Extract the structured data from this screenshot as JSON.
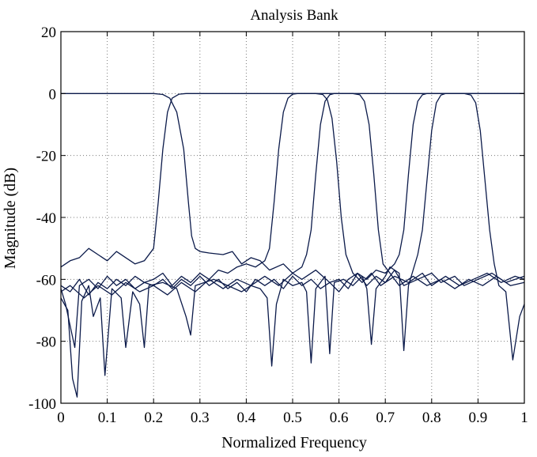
{
  "chart_data": {
    "type": "line",
    "title": "Analysis Bank",
    "xlabel": "Normalized Frequency",
    "ylabel": "Magnitude (dB)",
    "xlim": [
      0,
      1
    ],
    "ylim": [
      -100,
      20
    ],
    "xticks": [
      0,
      0.1,
      0.2,
      0.3,
      0.4,
      0.5,
      0.6,
      0.7,
      0.8,
      0.9,
      1
    ],
    "xtick_labels": [
      "0",
      "0.1",
      "0.2",
      "0.3",
      "0.4",
      "0.5",
      "0.6",
      "0.7",
      "0.8",
      "0.9",
      "1"
    ],
    "yticks": [
      -100,
      -80,
      -60,
      -40,
      -20,
      0,
      20
    ],
    "ytick_labels": [
      "-100",
      "-80",
      "-60",
      "-40",
      "-20",
      "0",
      "20"
    ],
    "grid": true,
    "line_color": "#0b1a4a",
    "series": [
      {
        "points": [
          [
            0,
            0
          ],
          [
            0.2,
            0
          ],
          [
            0.22,
            -0.3
          ],
          [
            0.235,
            -1.5
          ],
          [
            0.25,
            -6
          ],
          [
            0.265,
            -18
          ],
          [
            0.275,
            -35
          ],
          [
            0.282,
            -46
          ],
          [
            0.29,
            -50
          ],
          [
            0.3,
            -51
          ],
          [
            0.32,
            -51.5
          ],
          [
            0.35,
            -52
          ],
          [
            0.37,
            -51
          ],
          [
            0.39,
            -55
          ],
          [
            0.41,
            -53
          ],
          [
            0.43,
            -54
          ],
          [
            0.45,
            -57
          ],
          [
            0.48,
            -55
          ],
          [
            0.5,
            -58
          ],
          [
            0.52,
            -60
          ],
          [
            0.55,
            -57
          ],
          [
            0.58,
            -61
          ],
          [
            0.6,
            -60
          ],
          [
            0.62,
            -63
          ],
          [
            0.64,
            -58
          ],
          [
            0.66,
            -62
          ],
          [
            0.68,
            -59
          ],
          [
            0.7,
            -61
          ],
          [
            0.72,
            -57
          ],
          [
            0.74,
            -62
          ],
          [
            0.77,
            -60
          ],
          [
            0.8,
            -58
          ],
          [
            0.82,
            -61
          ],
          [
            0.85,
            -59
          ],
          [
            0.87,
            -62
          ],
          [
            0.9,
            -60
          ],
          [
            0.93,
            -58
          ],
          [
            0.96,
            -61
          ],
          [
            1,
            -59
          ]
        ]
      },
      {
        "points": [
          [
            0,
            -56
          ],
          [
            0.02,
            -54
          ],
          [
            0.04,
            -53
          ],
          [
            0.06,
            -50
          ],
          [
            0.08,
            -52
          ],
          [
            0.1,
            -54
          ],
          [
            0.12,
            -51
          ],
          [
            0.14,
            -53
          ],
          [
            0.16,
            -55
          ],
          [
            0.18,
            -54
          ],
          [
            0.2,
            -50
          ],
          [
            0.21,
            -35
          ],
          [
            0.22,
            -18
          ],
          [
            0.23,
            -6
          ],
          [
            0.24,
            -1.5
          ],
          [
            0.255,
            -0.2
          ],
          [
            0.27,
            0
          ],
          [
            1,
            0
          ]
        ]
      },
      {
        "points": [
          [
            0,
            -62
          ],
          [
            0.02,
            -64
          ],
          [
            0.04,
            -60
          ],
          [
            0.06,
            -65
          ],
          [
            0.08,
            -61
          ],
          [
            0.1,
            -63
          ],
          [
            0.12,
            -60
          ],
          [
            0.14,
            -62
          ],
          [
            0.16,
            -59
          ],
          [
            0.18,
            -61
          ],
          [
            0.2,
            -60
          ],
          [
            0.22,
            -58
          ],
          [
            0.24,
            -62
          ],
          [
            0.26,
            -59
          ],
          [
            0.28,
            -61
          ],
          [
            0.3,
            -58
          ],
          [
            0.32,
            -60
          ],
          [
            0.34,
            -57
          ],
          [
            0.36,
            -58
          ],
          [
            0.38,
            -56
          ],
          [
            0.4,
            -55
          ],
          [
            0.42,
            -56
          ],
          [
            0.44,
            -54
          ],
          [
            0.45,
            -50
          ],
          [
            0.46,
            -35
          ],
          [
            0.47,
            -18
          ],
          [
            0.48,
            -6
          ],
          [
            0.49,
            -1.5
          ],
          [
            0.5,
            -0.2
          ],
          [
            0.51,
            0
          ],
          [
            0.55,
            0
          ],
          [
            0.565,
            -0.3
          ],
          [
            0.575,
            -2
          ],
          [
            0.585,
            -8
          ],
          [
            0.595,
            -22
          ],
          [
            0.605,
            -40
          ],
          [
            0.615,
            -52
          ],
          [
            0.63,
            -58
          ],
          [
            0.65,
            -61
          ],
          [
            0.67,
            -58
          ],
          [
            0.69,
            -62
          ],
          [
            0.72,
            -59
          ],
          [
            0.75,
            -61
          ],
          [
            0.78,
            -58
          ],
          [
            0.8,
            -62
          ],
          [
            0.83,
            -59
          ],
          [
            0.86,
            -62
          ],
          [
            0.89,
            -60
          ],
          [
            0.92,
            -58
          ],
          [
            0.95,
            -61
          ],
          [
            0.98,
            -59
          ],
          [
            1,
            -60
          ]
        ]
      },
      {
        "points": [
          [
            0,
            -64
          ],
          [
            0.02,
            -62
          ],
          [
            0.05,
            -66
          ],
          [
            0.08,
            -62
          ],
          [
            0.11,
            -65
          ],
          [
            0.14,
            -61
          ],
          [
            0.17,
            -64
          ],
          [
            0.2,
            -62
          ],
          [
            0.23,
            -65
          ],
          [
            0.26,
            -61
          ],
          [
            0.29,
            -64
          ],
          [
            0.32,
            -60
          ],
          [
            0.35,
            -63
          ],
          [
            0.38,
            -60
          ],
          [
            0.41,
            -62
          ],
          [
            0.44,
            -59
          ],
          [
            0.47,
            -62
          ],
          [
            0.5,
            -58
          ],
          [
            0.52,
            -56
          ],
          [
            0.53,
            -52
          ],
          [
            0.54,
            -44
          ],
          [
            0.55,
            -26
          ],
          [
            0.56,
            -10
          ],
          [
            0.57,
            -2.5
          ],
          [
            0.58,
            -0.4
          ],
          [
            0.59,
            0
          ],
          [
            0.63,
            0
          ],
          [
            0.645,
            -0.4
          ],
          [
            0.655,
            -2.5
          ],
          [
            0.665,
            -10
          ],
          [
            0.675,
            -26
          ],
          [
            0.685,
            -44
          ],
          [
            0.695,
            -55
          ],
          [
            0.71,
            -58
          ],
          [
            0.73,
            -62
          ],
          [
            0.76,
            -59
          ],
          [
            0.79,
            -62
          ],
          [
            0.82,
            -60
          ],
          [
            0.85,
            -63
          ],
          [
            0.88,
            -60
          ],
          [
            0.91,
            -62
          ],
          [
            0.94,
            -59
          ],
          [
            0.97,
            -62
          ],
          [
            1,
            -61
          ]
        ]
      },
      {
        "points": [
          [
            0,
            -66
          ],
          [
            0.015,
            -70
          ],
          [
            0.025,
            -92
          ],
          [
            0.035,
            -98
          ],
          [
            0.045,
            -67
          ],
          [
            0.06,
            -62
          ],
          [
            0.07,
            -72
          ],
          [
            0.085,
            -66
          ],
          [
            0.095,
            -91
          ],
          [
            0.11,
            -63
          ],
          [
            0.13,
            -66
          ],
          [
            0.14,
            -82
          ],
          [
            0.155,
            -64
          ],
          [
            0.17,
            -68
          ],
          [
            0.18,
            -82
          ],
          [
            0.19,
            -62
          ],
          [
            0.22,
            -61
          ],
          [
            0.25,
            -63
          ],
          [
            0.27,
            -72
          ],
          [
            0.28,
            -78
          ],
          [
            0.29,
            -62
          ],
          [
            0.33,
            -60
          ],
          [
            0.36,
            -62
          ],
          [
            0.39,
            -64
          ],
          [
            0.41,
            -62
          ],
          [
            0.43,
            -63
          ],
          [
            0.445,
            -66
          ],
          [
            0.455,
            -88
          ],
          [
            0.465,
            -68
          ],
          [
            0.48,
            -60
          ],
          [
            0.5,
            -62
          ],
          [
            0.52,
            -61
          ],
          [
            0.53,
            -64
          ],
          [
            0.54,
            -87
          ],
          [
            0.55,
            -63
          ],
          [
            0.57,
            -59
          ],
          [
            0.58,
            -84
          ],
          [
            0.59,
            -61
          ],
          [
            0.61,
            -60
          ],
          [
            0.63,
            -62
          ],
          [
            0.65,
            -59
          ],
          [
            0.66,
            -63
          ],
          [
            0.67,
            -81
          ],
          [
            0.68,
            -63
          ],
          [
            0.7,
            -59
          ],
          [
            0.71,
            -56
          ],
          [
            0.73,
            -58
          ],
          [
            0.74,
            -83
          ],
          [
            0.75,
            -62
          ],
          [
            0.77,
            -52
          ],
          [
            0.78,
            -44
          ],
          [
            0.79,
            -28
          ],
          [
            0.8,
            -12
          ],
          [
            0.81,
            -3
          ],
          [
            0.82,
            -0.5
          ],
          [
            0.83,
            0
          ],
          [
            0.87,
            0
          ],
          [
            0.885,
            -0.5
          ],
          [
            0.895,
            -3
          ],
          [
            0.905,
            -12
          ],
          [
            0.915,
            -28
          ],
          [
            0.925,
            -44
          ],
          [
            0.935,
            -55
          ],
          [
            0.945,
            -62
          ],
          [
            0.96,
            -64
          ],
          [
            0.975,
            -86
          ],
          [
            0.99,
            -72
          ],
          [
            1,
            -68
          ]
        ]
      },
      {
        "points": [
          [
            0,
            -63
          ],
          [
            0.01,
            -68
          ],
          [
            0.02,
            -75
          ],
          [
            0.03,
            -82
          ],
          [
            0.04,
            -62
          ],
          [
            0.06,
            -60
          ],
          [
            0.08,
            -63
          ],
          [
            0.1,
            -59
          ],
          [
            0.12,
            -62
          ],
          [
            0.14,
            -60
          ],
          [
            0.16,
            -63
          ],
          [
            0.18,
            -61
          ],
          [
            0.2,
            -62
          ],
          [
            0.22,
            -60
          ],
          [
            0.24,
            -63
          ],
          [
            0.26,
            -60
          ],
          [
            0.28,
            -62
          ],
          [
            0.3,
            -59
          ],
          [
            0.32,
            -62
          ],
          [
            0.34,
            -60
          ],
          [
            0.36,
            -63
          ],
          [
            0.38,
            -61
          ],
          [
            0.4,
            -64
          ],
          [
            0.42,
            -60
          ],
          [
            0.44,
            -62
          ],
          [
            0.46,
            -60
          ],
          [
            0.48,
            -63
          ],
          [
            0.5,
            -59
          ],
          [
            0.52,
            -62
          ],
          [
            0.54,
            -60
          ],
          [
            0.56,
            -63
          ],
          [
            0.58,
            -61
          ],
          [
            0.6,
            -64
          ],
          [
            0.62,
            -60
          ],
          [
            0.64,
            -58
          ],
          [
            0.66,
            -60
          ],
          [
            0.68,
            -57
          ],
          [
            0.7,
            -58
          ],
          [
            0.72,
            -55
          ],
          [
            0.73,
            -52
          ],
          [
            0.74,
            -44
          ],
          [
            0.75,
            -26
          ],
          [
            0.76,
            -10
          ],
          [
            0.77,
            -2.5
          ],
          [
            0.78,
            -0.4
          ],
          [
            0.79,
            0
          ],
          [
            1,
            0
          ]
        ]
      }
    ]
  }
}
